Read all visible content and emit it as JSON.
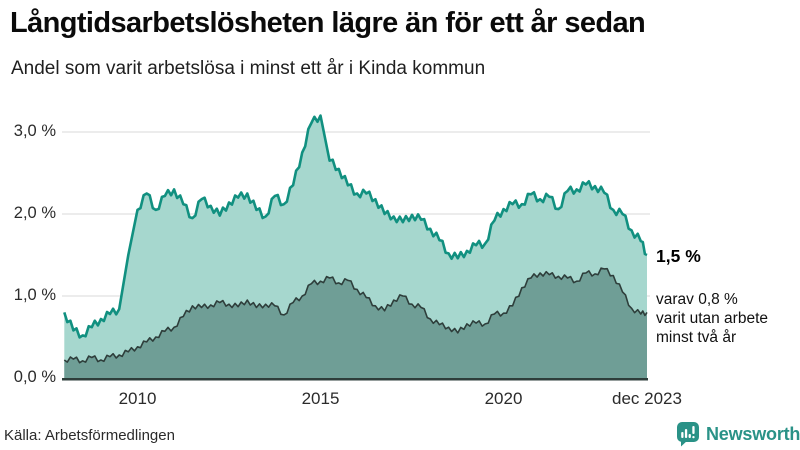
{
  "header": {
    "title": "Långtidsarbetslösheten lägre än för ett år sedan",
    "subtitle": "Andel som varit arbetslösa i minst ett år i Kinda kommun"
  },
  "chart_data": {
    "type": "area",
    "title": "Långtidsarbetslösheten lägre än för ett år sedan",
    "subtitle": "Andel som varit arbetslösa i minst ett år i Kinda kommun",
    "x_unit": "decimal_year (quarterly samples, 2008 – dec 2023)",
    "ylim": [
      0,
      3.3
    ],
    "grid": "horizontal",
    "x": [
      2008.0,
      2008.25,
      2008.5,
      2008.75,
      2009.0,
      2009.25,
      2009.5,
      2009.75,
      2010.0,
      2010.25,
      2010.5,
      2010.75,
      2011.0,
      2011.25,
      2011.5,
      2011.75,
      2012.0,
      2012.25,
      2012.5,
      2012.75,
      2013.0,
      2013.25,
      2013.5,
      2013.75,
      2014.0,
      2014.25,
      2014.5,
      2014.75,
      2015.0,
      2015.25,
      2015.5,
      2015.75,
      2016.0,
      2016.25,
      2016.5,
      2016.75,
      2017.0,
      2017.25,
      2017.5,
      2017.75,
      2018.0,
      2018.25,
      2018.5,
      2018.75,
      2019.0,
      2019.25,
      2019.5,
      2019.75,
      2020.0,
      2020.25,
      2020.5,
      2020.75,
      2021.0,
      2021.25,
      2021.5,
      2021.75,
      2022.0,
      2022.25,
      2022.5,
      2022.75,
      2023.0,
      2023.25,
      2023.5,
      2023.75,
      2023.92
    ],
    "series": [
      {
        "name": "Arbetslösa minst ett år",
        "line_color": "#119080",
        "fill_color": "#a6d7ce",
        "values": [
          0.8,
          0.58,
          0.52,
          0.62,
          0.72,
          0.78,
          0.84,
          1.5,
          2.05,
          2.25,
          2.05,
          2.22,
          2.3,
          2.12,
          1.95,
          2.18,
          2.1,
          1.98,
          2.14,
          2.2,
          2.25,
          2.05,
          1.97,
          2.22,
          2.12,
          2.35,
          2.75,
          3.11,
          3.2,
          2.65,
          2.55,
          2.35,
          2.25,
          2.25,
          2.18,
          2.0,
          1.97,
          1.9,
          1.99,
          1.93,
          1.82,
          1.68,
          1.52,
          1.46,
          1.55,
          1.62,
          1.64,
          1.92,
          2.06,
          2.12,
          2.12,
          2.24,
          2.18,
          2.21,
          2.06,
          2.28,
          2.3,
          2.36,
          2.34,
          2.26,
          2.05,
          2.0,
          1.8,
          1.67,
          1.5
        ]
      },
      {
        "name": "Arbetslösa minst två år",
        "line_color": "#2e3e3b",
        "fill_color": "#6f9e96",
        "values": [
          0.22,
          0.23,
          0.21,
          0.25,
          0.22,
          0.26,
          0.28,
          0.32,
          0.38,
          0.44,
          0.5,
          0.57,
          0.62,
          0.75,
          0.88,
          0.86,
          0.89,
          0.92,
          0.9,
          0.87,
          0.95,
          0.86,
          0.9,
          0.88,
          0.77,
          0.92,
          1.0,
          1.15,
          1.18,
          1.22,
          1.16,
          1.19,
          1.08,
          0.98,
          0.88,
          0.82,
          0.95,
          1.0,
          0.9,
          0.86,
          0.72,
          0.65,
          0.62,
          0.55,
          0.66,
          0.67,
          0.66,
          0.78,
          0.79,
          0.88,
          1.1,
          1.22,
          1.28,
          1.26,
          1.24,
          1.22,
          1.18,
          1.28,
          1.27,
          1.33,
          1.25,
          1.05,
          0.85,
          0.78,
          0.8
        ]
      }
    ],
    "y_ticks": [
      {
        "label": "0,0 %",
        "value": 0
      },
      {
        "label": "1,0 %",
        "value": 1
      },
      {
        "label": "2,0 %",
        "value": 2
      },
      {
        "label": "3,0 %",
        "value": 3
      }
    ],
    "x_ticks": [
      {
        "label": "2010",
        "value": 2010
      },
      {
        "label": "2015",
        "value": 2015
      },
      {
        "label": "2020",
        "value": 2020
      },
      {
        "label": "dec 2023",
        "value": 2023.92
      }
    ]
  },
  "annotations": {
    "end_value": "1,5 %",
    "note_lines": [
      "varav 0,8 %",
      "varit utan arbete",
      "minst två år"
    ]
  },
  "footer": {
    "source": "Källa: Arbetsförmedlingen",
    "logo_text": "Newsworthy"
  },
  "colors": {
    "line_1yr": "#119080",
    "fill_1yr": "#a6d7ce",
    "line_2yr": "#2e3e3b",
    "fill_2yr": "#6f9e96",
    "gridline": "#d9d9d9",
    "axis_line": "#2e3e3b",
    "logo_teal": "#2a9287"
  }
}
